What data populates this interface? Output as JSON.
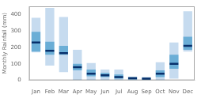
{
  "chart_data": {
    "type": "bar",
    "categories": [
      "Jan",
      "Feb",
      "Mar",
      "Apr",
      "May",
      "Jun",
      "Jul",
      "Aug",
      "Sep",
      "Oct",
      "Nov",
      "Dec"
    ],
    "series": [
      {
        "type": "bar",
        "color": "#c6dbef",
        "values": [
          [
            170,
            380
          ],
          [
            90,
            440
          ],
          [
            50,
            385
          ],
          [
            0,
            185
          ],
          [
            0,
            105
          ],
          [
            0,
            65
          ],
          [
            0,
            65
          ],
          [
            0,
            20
          ],
          [
            0,
            20
          ],
          [
            0,
            110
          ],
          [
            10,
            230
          ],
          [
            175,
            420
          ]
        ]
      },
      {
        "type": "bar",
        "color": "#6baed6",
        "values": [
          [
            175,
            295
          ],
          [
            155,
            235
          ],
          [
            155,
            210
          ],
          [
            60,
            100
          ],
          [
            25,
            65
          ],
          [
            20,
            45
          ],
          [
            10,
            35
          ],
          [
            5,
            20
          ],
          [
            5,
            15
          ],
          [
            20,
            60
          ],
          [
            70,
            155
          ],
          [
            185,
            265
          ]
        ]
      },
      {
        "type": "line",
        "color": "#08306b",
        "marker": "dash",
        "line_style": "none",
        "values": [
          230,
          180,
          165,
          80,
          40,
          30,
          20,
          12,
          10,
          40,
          100,
          210
        ]
      }
    ],
    "ylabel": "Monthly Rainfall (mm)",
    "ylim": [
      0,
      450
    ],
    "yticks": [
      0,
      100,
      200,
      300,
      400
    ],
    "grid": false
  }
}
